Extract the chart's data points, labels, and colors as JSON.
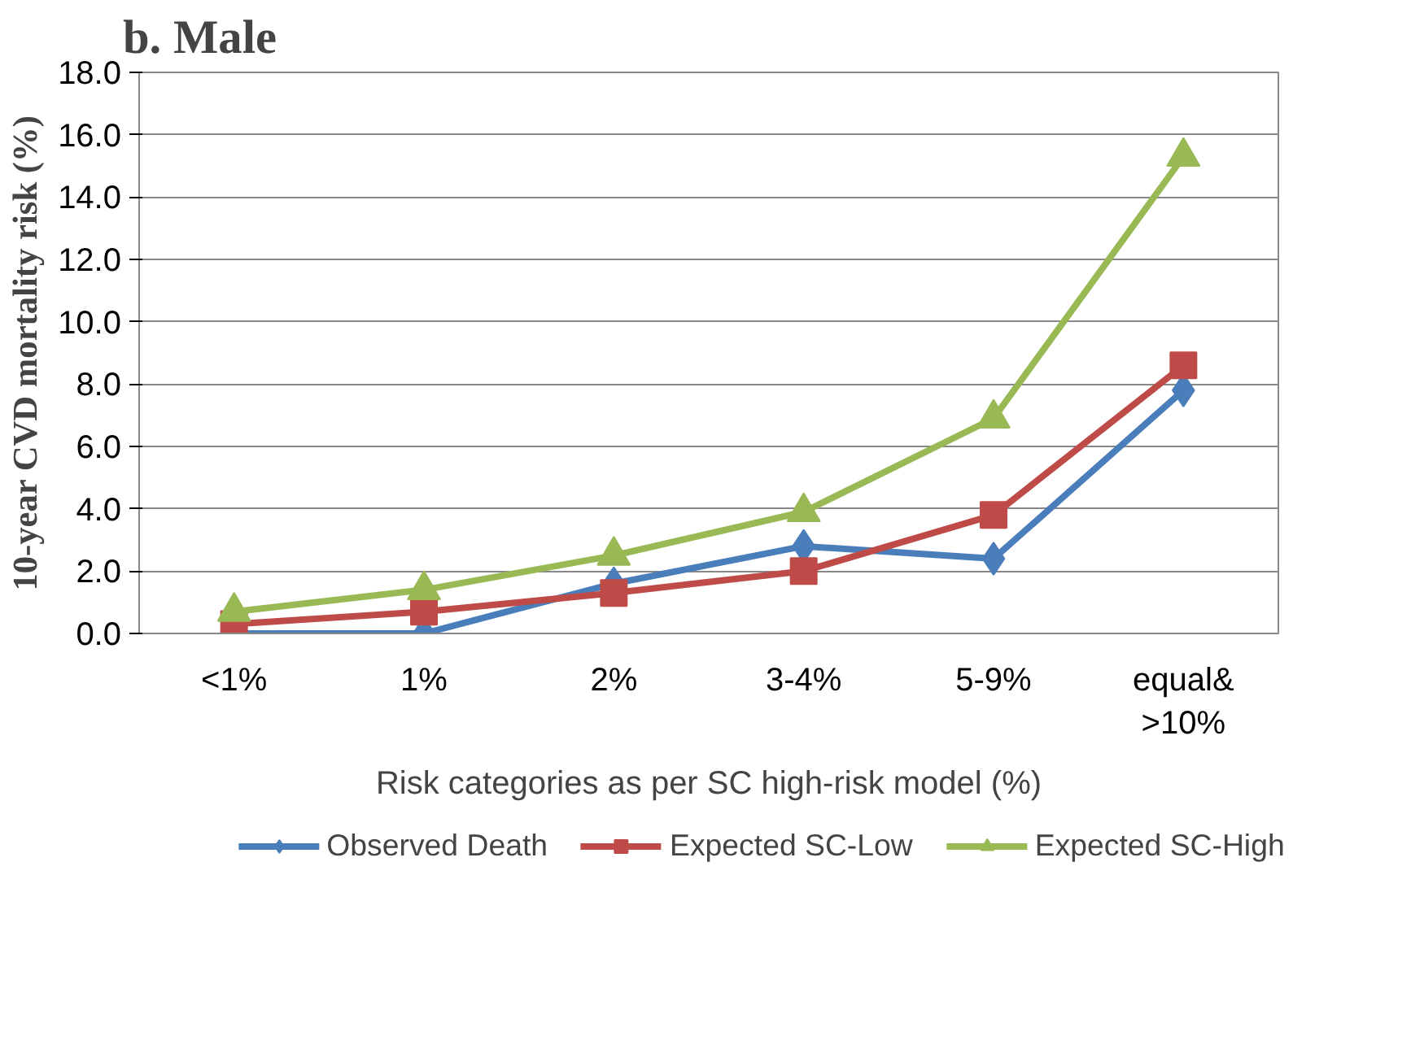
{
  "chart_data": {
    "type": "line",
    "title": "b. Male",
    "xlabel": "Risk categories as per SC high-risk model (%)",
    "ylabel": "10-year CVD mortality risk (%)",
    "categories": [
      "<1%",
      "1%",
      "2%",
      "3-4%",
      "5-9%",
      "equal& >10%"
    ],
    "series": [
      {
        "name": "Observed Death",
        "color": "#4a7ebb",
        "marker": "diamond",
        "values": [
          0.0,
          0.0,
          1.6,
          2.8,
          2.4,
          7.8
        ]
      },
      {
        "name": "Expected SC-Low",
        "color": "#be4b48",
        "marker": "square",
        "values": [
          0.3,
          0.7,
          1.3,
          2.0,
          3.8,
          8.6
        ]
      },
      {
        "name": "Expected SC-High",
        "color": "#98b954",
        "marker": "triangle",
        "values": [
          0.7,
          1.4,
          2.5,
          3.9,
          6.9,
          15.3
        ]
      }
    ],
    "ylim": [
      0,
      18
    ],
    "yticks": [
      {
        "value": 0,
        "label": "0.0"
      },
      {
        "value": 2,
        "label": "2.0"
      },
      {
        "value": 4,
        "label": "4.0"
      },
      {
        "value": 6,
        "label": "6.0"
      },
      {
        "value": 8,
        "label": "8.0"
      },
      {
        "value": 10,
        "label": "10.0"
      },
      {
        "value": 12,
        "label": "12.0"
      },
      {
        "value": 14,
        "label": "14.0"
      },
      {
        "value": 16,
        "label": "16.0"
      },
      {
        "value": 18,
        "label": "18.0"
      }
    ],
    "grid": "y",
    "legend": "bottom",
    "line_style": "solid"
  }
}
